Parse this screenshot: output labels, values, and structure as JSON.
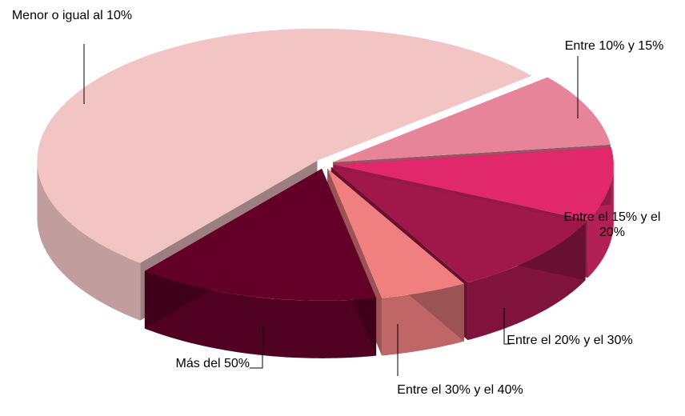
{
  "chart_data": {
    "type": "pie",
    "categories": [
      "Menor o igual al 10%",
      "Entre 10% y 15%",
      "Entre el 15% y el 20%",
      "Entre el 20% y el 30%",
      "Entre el 30% y el 40%",
      "Más del 50%"
    ],
    "values": [
      53,
      9,
      9,
      10,
      5,
      14
    ],
    "colors": [
      "#f2c4c4",
      "#e8849a",
      "#e0286a",
      "#a0184a",
      "#f08080",
      "#640028"
    ]
  }
}
